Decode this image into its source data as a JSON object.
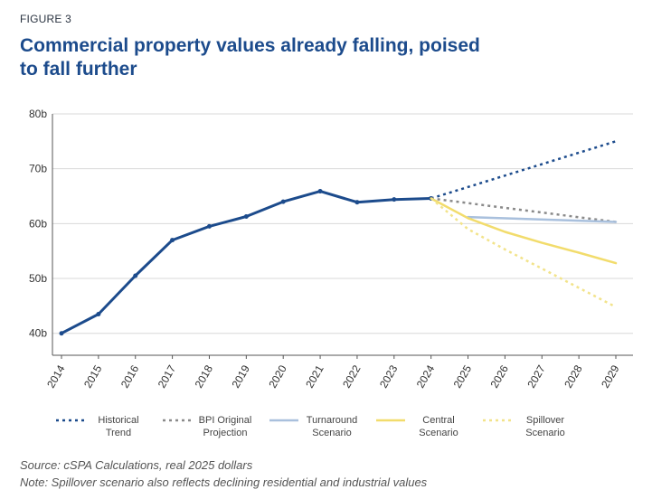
{
  "figure_label": "FIGURE 3",
  "title": "Commercial property values already falling, poised to fall further",
  "chart_data": {
    "type": "line",
    "x": [
      "2014",
      "2015",
      "2016",
      "2017",
      "2018",
      "2019",
      "2020",
      "2021",
      "2022",
      "2023",
      "2024",
      "2025",
      "2026",
      "2027",
      "2028",
      "2029"
    ],
    "y_ticks": [
      "40b",
      "50b",
      "60b",
      "70b",
      "80b"
    ],
    "ylim": [
      36,
      80
    ],
    "grid": true,
    "legend_position": "bottom",
    "series": [
      {
        "name": "",
        "color": "#1c4b8c",
        "style": "solid",
        "width": 3,
        "points": [
          [
            "2014",
            40.0
          ],
          [
            "2015",
            43.5
          ],
          [
            "2016",
            50.5
          ],
          [
            "2017",
            57.0
          ],
          [
            "2018",
            59.5
          ],
          [
            "2019",
            61.3
          ],
          [
            "2020",
            64.0
          ],
          [
            "2021",
            65.9
          ],
          [
            "2022",
            63.9
          ],
          [
            "2023",
            64.4
          ],
          [
            "2024",
            64.6
          ]
        ]
      },
      {
        "name": "Historical Trend",
        "color": "#1c4b8c",
        "style": "dotted",
        "width": 2.5,
        "points": [
          [
            "2024",
            64.6
          ],
          [
            "2029",
            75.0
          ]
        ]
      },
      {
        "name": "BPI Original Projection",
        "color": "#8a8a8a",
        "style": "dotted",
        "width": 2.5,
        "points": [
          [
            "2024",
            64.6
          ],
          [
            "2029",
            60.3
          ]
        ]
      },
      {
        "name": "Turnaround Scenario",
        "color": "#a9c0dd",
        "style": "solid",
        "width": 2.5,
        "points": [
          [
            "2025",
            61.2
          ],
          [
            "2029",
            60.3
          ]
        ]
      },
      {
        "name": "Central Scenario",
        "color": "#f2dc6c",
        "style": "solid",
        "width": 2.5,
        "points": [
          [
            "2024",
            64.6
          ],
          [
            "2025",
            61.0
          ],
          [
            "2026",
            58.5
          ],
          [
            "2027",
            56.5
          ],
          [
            "2028",
            54.7
          ],
          [
            "2029",
            52.8
          ]
        ]
      },
      {
        "name": "Spillover Scenario",
        "color": "#f2e38a",
        "style": "dotted",
        "width": 2.5,
        "points": [
          [
            "2024",
            64.6
          ],
          [
            "2025",
            59.0
          ],
          [
            "2026",
            55.3
          ],
          [
            "2027",
            51.8
          ],
          [
            "2028",
            48.3
          ],
          [
            "2029",
            44.8
          ]
        ]
      }
    ]
  },
  "legend": [
    {
      "label": "Historical Trend",
      "color": "#1c4b8c",
      "style": "dotted"
    },
    {
      "label": "BPI Original Projection",
      "color": "#8a8a8a",
      "style": "dotted"
    },
    {
      "label": "Turnaround Scenario",
      "color": "#a9c0dd",
      "style": "solid"
    },
    {
      "label": "Central Scenario",
      "color": "#f2dc6c",
      "style": "solid"
    },
    {
      "label": "Spillover Scenario",
      "color": "#f2e38a",
      "style": "dotted"
    }
  ],
  "source": "Source: cSPA Calculations, real 2025 dollars",
  "note": "Note: Spillover scenario also reflects declining residential and industrial values"
}
